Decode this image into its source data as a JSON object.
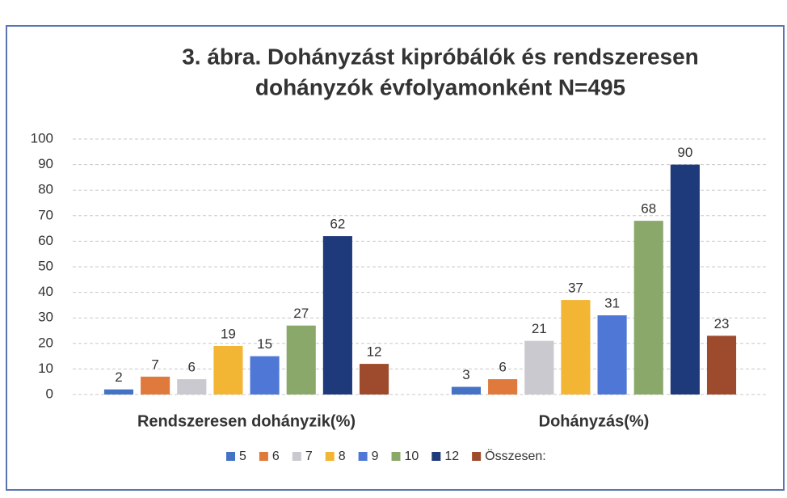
{
  "chart_data": {
    "type": "bar",
    "title": [
      "3. ábra.   Dohányzást kipróbálók és rendszeresen",
      "dohányzók évfolyamonként    N=495"
    ],
    "categories": [
      "Rendszeresen dohányzik(%)",
      "Dohányzás(%)"
    ],
    "series": [
      {
        "name": "5",
        "color": "#4472c4",
        "values": [
          2,
          3
        ]
      },
      {
        "name": "6",
        "color": "#e07a3c",
        "values": [
          7,
          6
        ]
      },
      {
        "name": "7",
        "color": "#c9c9cf",
        "values": [
          6,
          21
        ]
      },
      {
        "name": "8",
        "color": "#f2b534",
        "values": [
          19,
          37
        ]
      },
      {
        "name": "9",
        "color": "#4f78d6",
        "values": [
          15,
          31
        ]
      },
      {
        "name": "10",
        "color": "#8aa86a",
        "values": [
          27,
          68
        ]
      },
      {
        "name": "12",
        "color": "#1f3a7a",
        "values": [
          62,
          90
        ]
      },
      {
        "name": "Összesen:",
        "color": "#9e4a2c",
        "values": [
          12,
          23
        ]
      }
    ],
    "ylim": [
      0,
      100
    ],
    "yticks": [
      0,
      10,
      20,
      30,
      40,
      50,
      60,
      70,
      80,
      90,
      100
    ],
    "grid": true,
    "legend": "bottom"
  }
}
